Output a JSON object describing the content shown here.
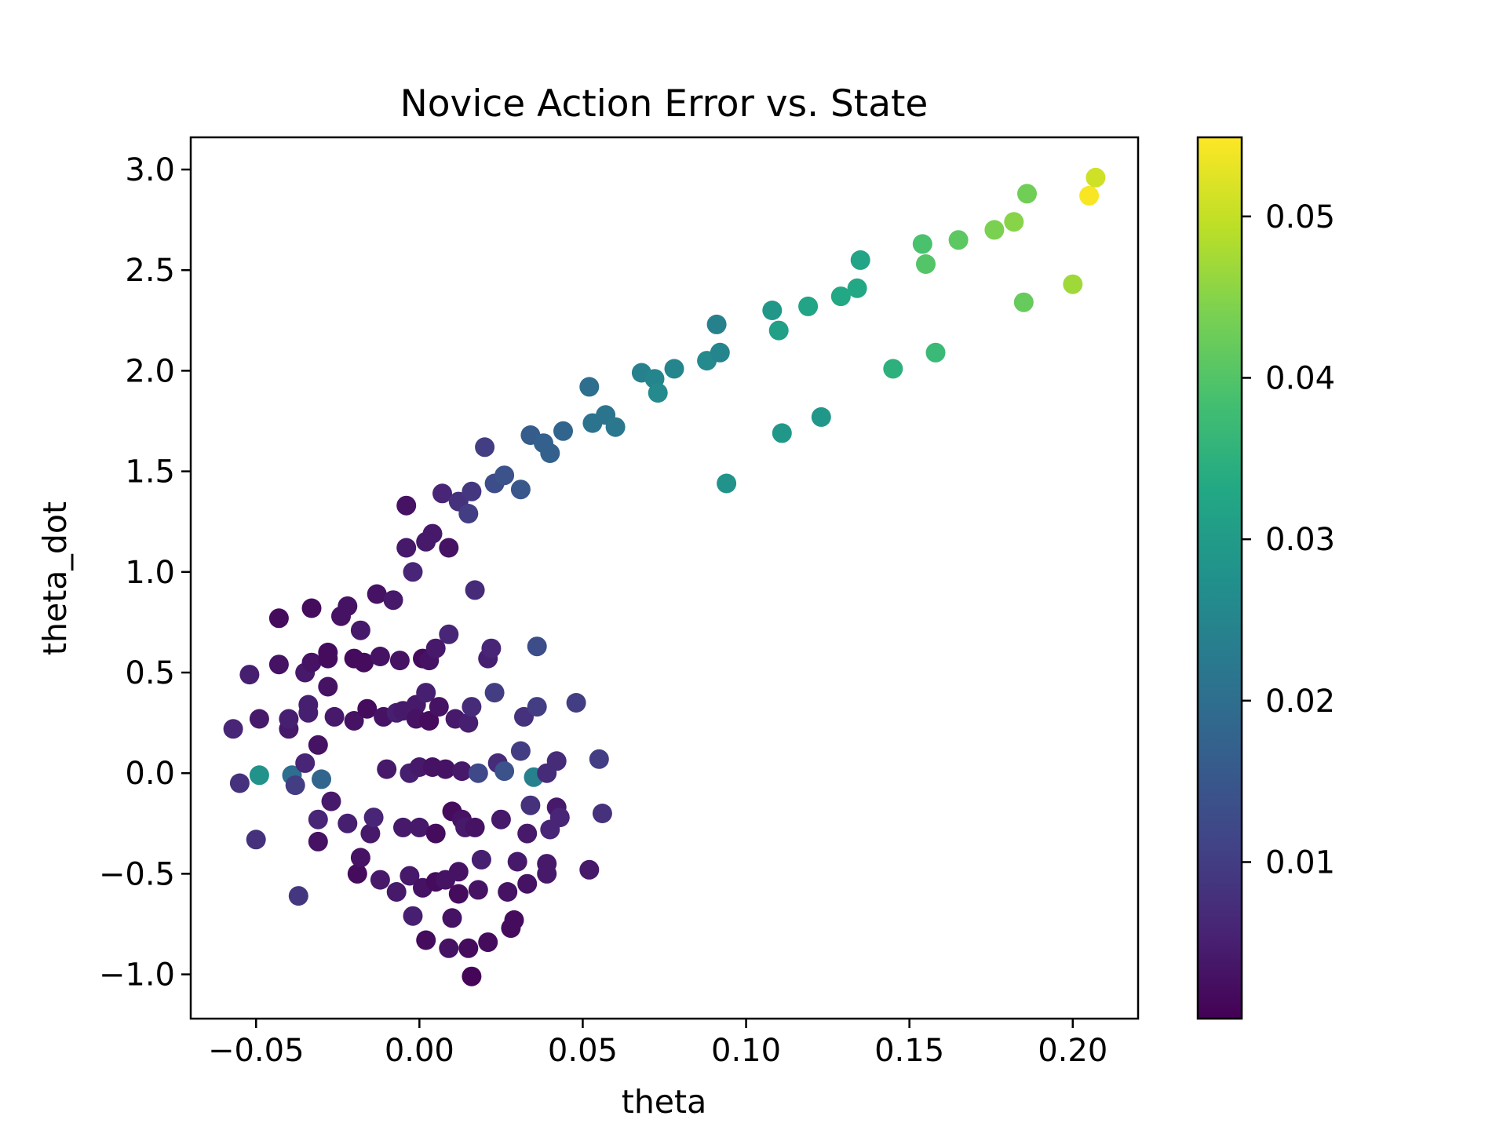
{
  "chart_data": {
    "type": "scatter",
    "title": "Novice Action Error vs. State",
    "xlabel": "theta",
    "ylabel": "theta_dot",
    "xlim": [
      -0.07,
      0.22
    ],
    "ylim": [
      -1.22,
      3.16
    ],
    "xticks": [
      -0.05,
      0.0,
      0.05,
      0.1,
      0.15,
      0.2
    ],
    "xtick_labels": [
      "−0.05",
      "0.00",
      "0.05",
      "0.10",
      "0.15",
      "0.20"
    ],
    "yticks": [
      -1.0,
      -0.5,
      0.0,
      0.5,
      1.0,
      1.5,
      2.0,
      2.5,
      3.0
    ],
    "ytick_labels": [
      "−1.0",
      "−0.5",
      "0.0",
      "0.5",
      "1.0",
      "1.5",
      "2.0",
      "2.5",
      "3.0"
    ],
    "grid": false,
    "legend": false,
    "colormap": "viridis",
    "color_label": "",
    "color_range": [
      0.0003,
      0.0549
    ],
    "colorbar_ticks": [
      0.01,
      0.02,
      0.03,
      0.04,
      0.05
    ],
    "colorbar_tick_labels": [
      "0.01",
      "0.02",
      "0.03",
      "0.04",
      "0.05"
    ],
    "points": [
      [
        -0.057,
        0.22,
        0.006
      ],
      [
        -0.055,
        -0.05,
        0.008
      ],
      [
        -0.052,
        0.49,
        0.005
      ],
      [
        -0.05,
        -0.33,
        0.008
      ],
      [
        -0.049,
        0.27,
        0.004
      ],
      [
        -0.049,
        -0.01,
        0.028
      ],
      [
        -0.043,
        0.77,
        0.002
      ],
      [
        -0.043,
        0.54,
        0.003
      ],
      [
        -0.04,
        0.22,
        0.004
      ],
      [
        -0.04,
        0.27,
        0.005
      ],
      [
        -0.039,
        -0.01,
        0.02
      ],
      [
        -0.038,
        -0.06,
        0.01
      ],
      [
        -0.037,
        -0.61,
        0.009
      ],
      [
        -0.035,
        0.05,
        0.006
      ],
      [
        -0.035,
        0.5,
        0.004
      ],
      [
        -0.034,
        0.34,
        0.005
      ],
      [
        -0.034,
        0.3,
        0.005
      ],
      [
        -0.033,
        0.55,
        0.003
      ],
      [
        -0.033,
        0.82,
        0.002
      ],
      [
        -0.031,
        -0.34,
        0.003
      ],
      [
        -0.031,
        0.14,
        0.003
      ],
      [
        -0.031,
        -0.23,
        0.006
      ],
      [
        -0.03,
        -0.03,
        0.018
      ],
      [
        -0.028,
        0.6,
        0.002
      ],
      [
        -0.028,
        0.57,
        0.002
      ],
      [
        -0.028,
        0.43,
        0.003
      ],
      [
        -0.027,
        -0.14,
        0.004
      ],
      [
        -0.026,
        0.28,
        0.004
      ],
      [
        -0.024,
        0.78,
        0.003
      ],
      [
        -0.022,
        -0.25,
        0.005
      ],
      [
        -0.022,
        0.83,
        0.003
      ],
      [
        -0.02,
        0.26,
        0.003
      ],
      [
        -0.02,
        0.57,
        0.002
      ],
      [
        -0.019,
        -0.5,
        0.002
      ],
      [
        -0.018,
        0.71,
        0.004
      ],
      [
        -0.018,
        -0.42,
        0.003
      ],
      [
        -0.017,
        0.55,
        0.002
      ],
      [
        -0.016,
        0.32,
        0.002
      ],
      [
        -0.015,
        -0.3,
        0.004
      ],
      [
        -0.014,
        -0.22,
        0.006
      ],
      [
        -0.013,
        0.89,
        0.003
      ],
      [
        -0.012,
        0.58,
        0.003
      ],
      [
        -0.012,
        -0.53,
        0.004
      ],
      [
        -0.011,
        0.28,
        0.003
      ],
      [
        -0.01,
        0.02,
        0.004
      ],
      [
        -0.008,
        0.86,
        0.004
      ],
      [
        -0.007,
        0.3,
        0.005
      ],
      [
        -0.007,
        -0.59,
        0.004
      ],
      [
        -0.006,
        0.56,
        0.003
      ],
      [
        -0.005,
        0.31,
        0.004
      ],
      [
        -0.005,
        -0.27,
        0.004
      ],
      [
        -0.004,
        1.33,
        0.003
      ],
      [
        -0.004,
        1.12,
        0.004
      ],
      [
        -0.003,
        -0.51,
        0.004
      ],
      [
        -0.003,
        0.0,
        0.005
      ],
      [
        -0.002,
        1.0,
        0.006
      ],
      [
        -0.002,
        -0.71,
        0.005
      ],
      [
        -0.001,
        0.34,
        0.004
      ],
      [
        -0.001,
        0.27,
        0.003
      ],
      [
        0.0,
        -0.27,
        0.004
      ],
      [
        0.0,
        0.03,
        0.004
      ],
      [
        0.001,
        0.57,
        0.002
      ],
      [
        0.001,
        -0.57,
        0.003
      ],
      [
        0.002,
        1.15,
        0.004
      ],
      [
        0.002,
        0.4,
        0.005
      ],
      [
        0.002,
        -0.83,
        0.002
      ],
      [
        0.003,
        0.56,
        0.003
      ],
      [
        0.003,
        0.26,
        0.002
      ],
      [
        0.004,
        1.19,
        0.004
      ],
      [
        0.004,
        0.03,
        0.003
      ],
      [
        0.005,
        -0.54,
        0.002
      ],
      [
        0.005,
        0.62,
        0.004
      ],
      [
        0.005,
        -0.3,
        0.002
      ],
      [
        0.006,
        0.33,
        0.003
      ],
      [
        0.007,
        1.39,
        0.006
      ],
      [
        0.008,
        0.02,
        0.003
      ],
      [
        0.008,
        -0.53,
        0.003
      ],
      [
        0.009,
        -0.87,
        0.003
      ],
      [
        0.009,
        1.12,
        0.003
      ],
      [
        0.009,
        0.69,
        0.006
      ],
      [
        0.01,
        -0.72,
        0.003
      ],
      [
        0.01,
        -0.19,
        0.002
      ],
      [
        0.011,
        0.27,
        0.004
      ],
      [
        0.012,
        -0.6,
        0.002
      ],
      [
        0.012,
        -0.49,
        0.003
      ],
      [
        0.012,
        1.35,
        0.008
      ],
      [
        0.013,
        0.01,
        0.004
      ],
      [
        0.013,
        -0.23,
        0.003
      ],
      [
        0.014,
        -0.27,
        0.004
      ],
      [
        0.015,
        1.29,
        0.01
      ],
      [
        0.015,
        0.25,
        0.005
      ],
      [
        0.015,
        -0.87,
        0.002
      ],
      [
        0.016,
        -1.01,
        0.001
      ],
      [
        0.016,
        1.4,
        0.009
      ],
      [
        0.016,
        0.33,
        0.007
      ],
      [
        0.017,
        0.91,
        0.007
      ],
      [
        0.017,
        -0.27,
        0.003
      ],
      [
        0.018,
        -0.58,
        0.003
      ],
      [
        0.018,
        0.0,
        0.012
      ],
      [
        0.019,
        -0.43,
        0.005
      ],
      [
        0.02,
        1.62,
        0.01
      ],
      [
        0.021,
        -0.84,
        0.002
      ],
      [
        0.021,
        0.57,
        0.005
      ],
      [
        0.022,
        0.62,
        0.006
      ],
      [
        0.023,
        1.44,
        0.013
      ],
      [
        0.023,
        0.4,
        0.01
      ],
      [
        0.024,
        0.05,
        0.007
      ],
      [
        0.025,
        -0.23,
        0.004
      ],
      [
        0.026,
        1.48,
        0.014
      ],
      [
        0.026,
        0.01,
        0.014
      ],
      [
        0.027,
        -0.59,
        0.003
      ],
      [
        0.028,
        -0.77,
        0.002
      ],
      [
        0.029,
        -0.73,
        0.002
      ],
      [
        0.03,
        -0.44,
        0.004
      ],
      [
        0.031,
        1.41,
        0.015
      ],
      [
        0.031,
        0.11,
        0.01
      ],
      [
        0.032,
        0.28,
        0.008
      ],
      [
        0.033,
        -0.55,
        0.003
      ],
      [
        0.033,
        -0.3,
        0.004
      ],
      [
        0.034,
        -0.16,
        0.008
      ],
      [
        0.034,
        1.68,
        0.016
      ],
      [
        0.035,
        -0.02,
        0.024
      ],
      [
        0.036,
        0.63,
        0.013
      ],
      [
        0.036,
        0.33,
        0.01
      ],
      [
        0.038,
        1.64,
        0.017
      ],
      [
        0.039,
        -0.5,
        0.004
      ],
      [
        0.039,
        -0.45,
        0.004
      ],
      [
        0.039,
        0.0,
        0.007
      ],
      [
        0.04,
        1.59,
        0.017
      ],
      [
        0.04,
        -0.28,
        0.006
      ],
      [
        0.042,
        0.06,
        0.007
      ],
      [
        0.042,
        -0.17,
        0.004
      ],
      [
        0.043,
        -0.22,
        0.006
      ],
      [
        0.044,
        1.7,
        0.018
      ],
      [
        0.048,
        0.35,
        0.01
      ],
      [
        0.052,
        -0.48,
        0.004
      ],
      [
        0.052,
        1.92,
        0.02
      ],
      [
        0.053,
        1.74,
        0.021
      ],
      [
        0.055,
        0.07,
        0.01
      ],
      [
        0.056,
        -0.2,
        0.008
      ],
      [
        0.057,
        1.78,
        0.021
      ],
      [
        0.06,
        1.72,
        0.022
      ],
      [
        0.068,
        1.99,
        0.024
      ],
      [
        0.072,
        1.96,
        0.025
      ],
      [
        0.073,
        1.89,
        0.026
      ],
      [
        0.078,
        2.01,
        0.025
      ],
      [
        0.088,
        2.05,
        0.026
      ],
      [
        0.091,
        2.23,
        0.024
      ],
      [
        0.092,
        2.09,
        0.025
      ],
      [
        0.094,
        1.44,
        0.028
      ],
      [
        0.108,
        2.3,
        0.029
      ],
      [
        0.11,
        2.2,
        0.031
      ],
      [
        0.111,
        1.69,
        0.029
      ],
      [
        0.119,
        2.32,
        0.032
      ],
      [
        0.123,
        1.77,
        0.029
      ],
      [
        0.129,
        2.37,
        0.033
      ],
      [
        0.134,
        2.41,
        0.033
      ],
      [
        0.135,
        2.55,
        0.032
      ],
      [
        0.145,
        2.01,
        0.035
      ],
      [
        0.154,
        2.63,
        0.039
      ],
      [
        0.155,
        2.53,
        0.04
      ],
      [
        0.158,
        2.09,
        0.037
      ],
      [
        0.165,
        2.65,
        0.041
      ],
      [
        0.176,
        2.7,
        0.044
      ],
      [
        0.182,
        2.74,
        0.045
      ],
      [
        0.185,
        2.34,
        0.042
      ],
      [
        0.186,
        2.88,
        0.043
      ],
      [
        0.2,
        2.43,
        0.047
      ],
      [
        0.205,
        2.87,
        0.0545
      ],
      [
        0.207,
        2.96,
        0.051
      ]
    ]
  }
}
